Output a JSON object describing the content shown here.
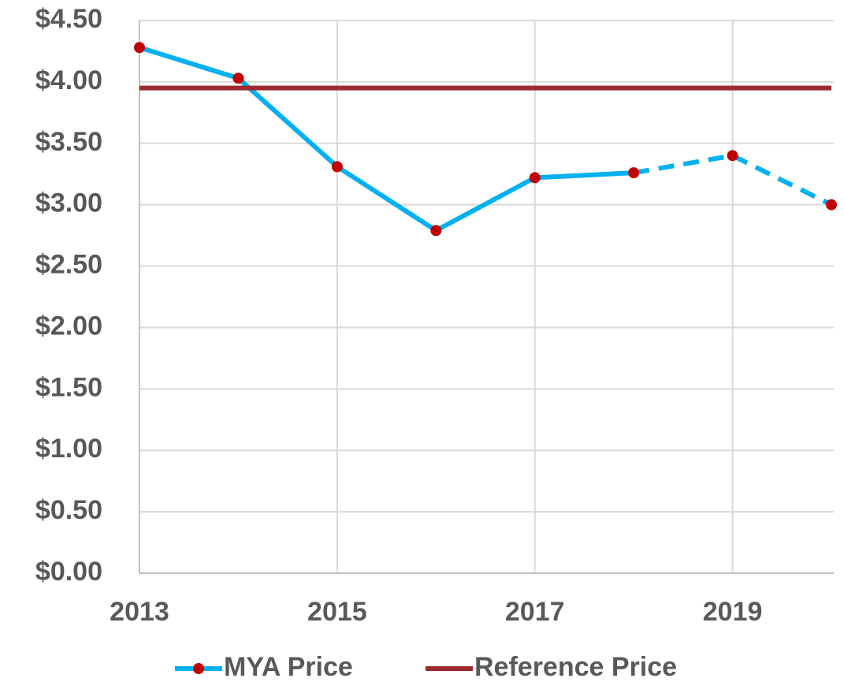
{
  "chart_data": {
    "type": "line",
    "x": [
      2013,
      2014,
      2015,
      2016,
      2017,
      2018,
      2019,
      2020
    ],
    "series": [
      {
        "name": "MYA Price",
        "color": "#00b0f0",
        "marker_color": "#c00000",
        "dash_from_x": 2018,
        "values": [
          4.28,
          4.03,
          3.31,
          2.79,
          3.22,
          3.26,
          3.4,
          3.0
        ]
      },
      {
        "name": "Reference Price",
        "color": "#9e2a2f",
        "values": [
          3.95,
          3.95,
          3.95,
          3.95,
          3.95,
          3.95,
          3.95,
          3.95
        ]
      }
    ],
    "xlim": [
      2013,
      2020
    ],
    "xticks": [
      2013,
      2015,
      2017,
      2019
    ],
    "ylim": [
      0,
      4.5
    ],
    "yticks": [
      {
        "value": 0,
        "label": "$0.00"
      },
      {
        "value": 0.5,
        "label": "$0.50"
      },
      {
        "value": 1,
        "label": "$1.00"
      },
      {
        "value": 1.5,
        "label": "$1.50"
      },
      {
        "value": 2,
        "label": "$2.00"
      },
      {
        "value": 2.5,
        "label": "$2.50"
      },
      {
        "value": 3,
        "label": "$3.00"
      },
      {
        "value": 3.5,
        "label": "$3.50"
      },
      {
        "value": 4,
        "label": "$4.00"
      },
      {
        "value": 4.5,
        "label": "$4.50"
      }
    ],
    "grid": true,
    "legend": "bottom"
  }
}
